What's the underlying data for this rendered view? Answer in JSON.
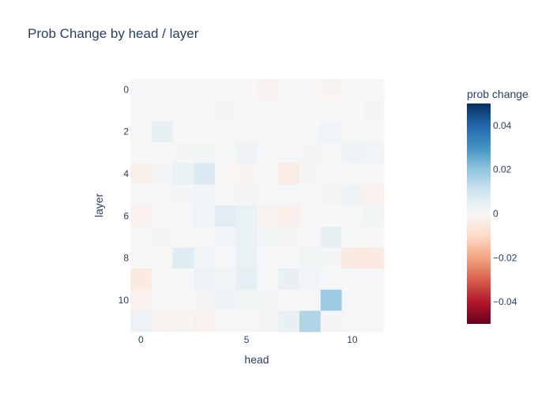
{
  "chart_data": {
    "type": "heatmap",
    "title": "Prob Change by head / layer",
    "xlabel": "head",
    "ylabel": "layer",
    "x": [
      0,
      1,
      2,
      3,
      4,
      5,
      6,
      7,
      8,
      9,
      10,
      11
    ],
    "y": [
      0,
      1,
      2,
      3,
      4,
      5,
      6,
      7,
      8,
      9,
      10,
      11
    ],
    "x_ticks": [
      0,
      5,
      10
    ],
    "y_ticks": [
      0,
      2,
      4,
      6,
      8,
      10
    ],
    "zlim": [
      -0.05,
      0.05
    ],
    "colorbar": {
      "title": "prob change",
      "ticks": [
        0.04,
        0.02,
        0,
        -0.02,
        -0.04
      ],
      "tick_labels": [
        "0.04",
        "0.02",
        "0",
        "−0.02",
        "−0.04"
      ],
      "colorscale": "RdBu"
    },
    "z": [
      [
        0.0005,
        0.0002,
        0.0002,
        0.0001,
        0.0001,
        0.0,
        -0.0015,
        -0.0005,
        -0.0005,
        -0.001,
        -0.0005,
        0.0003
      ],
      [
        0.0003,
        0.0001,
        0.0001,
        0.0003,
        0.0008,
        0.0004,
        0.0002,
        0.0001,
        0.0002,
        0.0001,
        0.0002,
        0.0008
      ],
      [
        0.0004,
        0.004,
        0.0001,
        0.0001,
        0.0001,
        0.0001,
        0.0001,
        0.0001,
        0.0004,
        0.0015,
        0.0002,
        0.0001
      ],
      [
        0.0001,
        0.0001,
        0.0008,
        0.0012,
        0.0006,
        0.002,
        0.0006,
        0.0004,
        0.001,
        0.0004,
        0.0025,
        0.0018
      ],
      [
        -0.0025,
        0.001,
        0.0035,
        0.0075,
        -0.0005,
        -0.001,
        0.0002,
        -0.004,
        -0.0008,
        0.0002,
        0.0002,
        0.0004
      ],
      [
        0.0003,
        0.0003,
        0.001,
        0.0015,
        0.0006,
        0.001,
        0.0007,
        0.0004,
        0.0003,
        0.001,
        0.002,
        -0.002
      ],
      [
        -0.002,
        -0.0003,
        0.0004,
        0.0015,
        0.0055,
        0.0035,
        -0.0015,
        -0.0025,
        0.0003,
        0.0002,
        0.0004,
        0.0012
      ],
      [
        0.0002,
        -0.0008,
        0.0002,
        0.0004,
        0.0015,
        0.0035,
        0.0012,
        0.001,
        0.0003,
        0.004,
        0.0004,
        0.0002
      ],
      [
        0.0001,
        -0.0004,
        0.006,
        0.0018,
        0.0004,
        0.0035,
        0.0006,
        0.0002,
        0.0012,
        0.001,
        -0.005,
        -0.0045
      ],
      [
        -0.0045,
        0.0001,
        0.0002,
        0.003,
        0.0012,
        0.0045,
        0.0004,
        0.004,
        0.0018,
        0.0004,
        0.0004,
        0.0002
      ],
      [
        -0.002,
        0.0002,
        0.0004,
        0.001,
        0.002,
        0.0012,
        0.001,
        0.0005,
        0.0004,
        0.018,
        0.0004,
        0.0002
      ],
      [
        0.003,
        -0.0015,
        -0.001,
        -0.002,
        0.0004,
        0.0006,
        0.0008,
        0.004,
        0.015,
        0.001,
        0.0004,
        0.0003
      ]
    ]
  }
}
